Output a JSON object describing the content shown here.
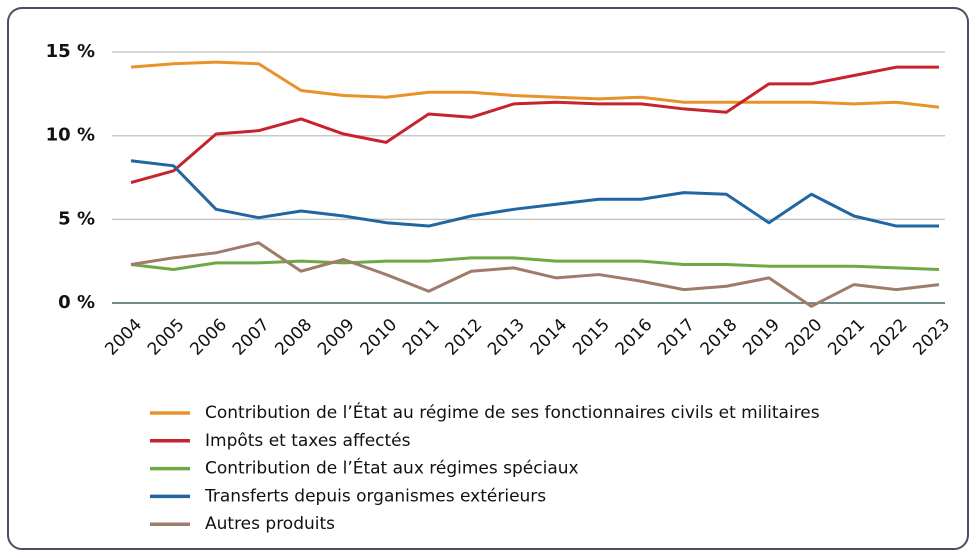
{
  "chart_data": {
    "type": "line",
    "categories": [
      "2004",
      "2005",
      "2006",
      "2007",
      "2008",
      "2009",
      "2010",
      "2011",
      "2012",
      "2013",
      "2014",
      "2015",
      "2016",
      "2017",
      "2018",
      "2019",
      "2020",
      "2021",
      "2022",
      "2023"
    ],
    "series": [
      {
        "name": "Contribution de l’État au régime de ses fonctionnaires civils et militaires",
        "color": "#e8922b",
        "values": [
          14.1,
          14.3,
          14.4,
          14.3,
          12.7,
          12.4,
          12.3,
          12.6,
          12.6,
          12.4,
          12.3,
          12.2,
          12.3,
          12.0,
          12.0,
          12.0,
          12.0,
          11.9,
          12.0,
          11.7
        ]
      },
      {
        "name": "Impôts et taxes affectés",
        "color": "#c8232c",
        "values": [
          7.2,
          7.9,
          10.1,
          10.3,
          11.0,
          10.1,
          9.6,
          11.3,
          11.1,
          11.9,
          12.0,
          11.9,
          11.9,
          11.6,
          11.4,
          13.1,
          13.1,
          13.6,
          14.1,
          14.1
        ]
      },
      {
        "name": "Contribution de l’État aux régimes spéciaux",
        "color": "#6ea843",
        "values": [
          2.3,
          2.0,
          2.4,
          2.4,
          2.5,
          2.4,
          2.5,
          2.5,
          2.7,
          2.7,
          2.5,
          2.5,
          2.5,
          2.3,
          2.3,
          2.2,
          2.2,
          2.2,
          2.1,
          2.0
        ]
      },
      {
        "name": "Transferts depuis organismes extérieurs",
        "color": "#2166a0",
        "values": [
          8.5,
          8.2,
          5.6,
          5.1,
          5.5,
          5.2,
          4.8,
          4.6,
          5.2,
          5.6,
          5.9,
          6.2,
          6.2,
          6.6,
          6.5,
          4.8,
          6.5,
          5.2,
          4.6,
          4.6
        ]
      },
      {
        "name": "Autres produits",
        "color": "#9e7b6a",
        "values": [
          2.3,
          2.7,
          3.0,
          3.6,
          1.9,
          2.6,
          1.7,
          0.7,
          1.9,
          2.1,
          1.5,
          1.7,
          1.3,
          0.8,
          1.0,
          1.5,
          -0.2,
          1.1,
          0.8,
          1.1
        ]
      }
    ],
    "ylim": [
      -1,
      15.5
    ],
    "yticks": [
      {
        "value": 0,
        "label": "0 %"
      },
      {
        "value": 5,
        "label": "5 %"
      },
      {
        "value": 10,
        "label": "10 %"
      },
      {
        "value": 15,
        "label": "15 %"
      }
    ],
    "grid": true
  }
}
